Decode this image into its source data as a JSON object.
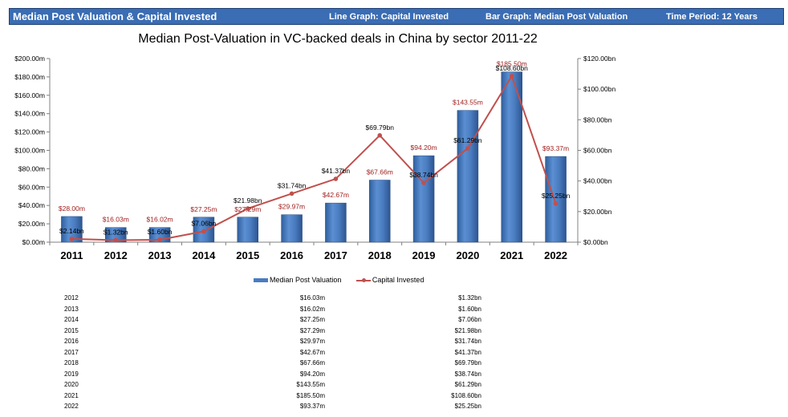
{
  "header": {
    "title": "Median Post Valuation & Capital Invested",
    "line_graph": "Line Graph: Capital Invested",
    "bar_graph": "Bar Graph: Median Post Valuation",
    "time_period": "Time Period: 12 Years"
  },
  "chart_data": {
    "type": "bar+line",
    "title": "Median Post-Valuation in VC-backed deals in China by sector 2011-22",
    "categories": [
      "2011",
      "2012",
      "2013",
      "2014",
      "2015",
      "2016",
      "2017",
      "2018",
      "2019",
      "2020",
      "2021",
      "2022"
    ],
    "series": [
      {
        "name": "Median Post Valuation",
        "type": "bar",
        "axis": "left",
        "values": [
          28.0,
          16.03,
          16.02,
          27.25,
          27.29,
          29.97,
          42.67,
          67.66,
          94.2,
          143.55,
          185.5,
          93.37
        ],
        "labels": [
          "$28.00m",
          "$16.03m",
          "$16.02m",
          "$27.25m",
          "$27.29m",
          "$29.97m",
          "$42.67m",
          "$67.66m",
          "$94.20m",
          "$143.55m",
          "$185.50m",
          "$93.37m"
        ],
        "color": "#4a7cc0"
      },
      {
        "name": "Capital Invested",
        "type": "line",
        "axis": "right",
        "values": [
          2.14,
          1.32,
          1.6,
          7.06,
          21.98,
          31.74,
          41.37,
          69.79,
          38.74,
          61.29,
          108.6,
          25.25
        ],
        "labels": [
          "$2.14bn",
          "$1.32bn",
          "$1.60bn",
          "$7.06bn",
          "$21.98bn",
          "$31.74bn",
          "$41.37bn",
          "$69.79bn",
          "$38.74bn",
          "$61.29bn",
          "$108.60bn",
          "$25.25bn"
        ],
        "color": "#c0504d"
      }
    ],
    "left_axis": {
      "min": 0,
      "max": 200,
      "step": 20,
      "tick_labels": [
        "$0.00m",
        "$20.00m",
        "$40.00m",
        "$60.00m",
        "$80.00m",
        "$100.00m",
        "$120.00m",
        "$140.00m",
        "$160.00m",
        "$180.00m",
        "$200.00m"
      ]
    },
    "right_axis": {
      "min": 0,
      "max": 120,
      "step": 20,
      "tick_labels": [
        "$0.00bn",
        "$20.00bn",
        "$40.00bn",
        "$60.00bn",
        "$80.00bn",
        "$100.00bn",
        "$120.00bn"
      ]
    },
    "legend": [
      "Median Post Valuation",
      "Capital Invested"
    ]
  },
  "table": {
    "rows": [
      {
        "year": "2012",
        "valuation": "$16.03m",
        "capital": "$1.32bn"
      },
      {
        "year": "2013",
        "valuation": "$16.02m",
        "capital": "$1.60bn"
      },
      {
        "year": "2014",
        "valuation": "$27.25m",
        "capital": "$7.06bn"
      },
      {
        "year": "2015",
        "valuation": "$27.29m",
        "capital": "$21.98bn"
      },
      {
        "year": "2016",
        "valuation": "$29.97m",
        "capital": "$31.74bn"
      },
      {
        "year": "2017",
        "valuation": "$42.67m",
        "capital": "$41.37bn"
      },
      {
        "year": "2018",
        "valuation": "$67.66m",
        "capital": "$69.79bn"
      },
      {
        "year": "2019",
        "valuation": "$94.20m",
        "capital": "$38.74bn"
      },
      {
        "year": "2020",
        "valuation": "$143.55m",
        "capital": "$61.29bn"
      },
      {
        "year": "2021",
        "valuation": "$185.50m",
        "capital": "$108.60bn"
      },
      {
        "year": "2022",
        "valuation": "$93.37m",
        "capital": "$25.25bn"
      }
    ]
  }
}
